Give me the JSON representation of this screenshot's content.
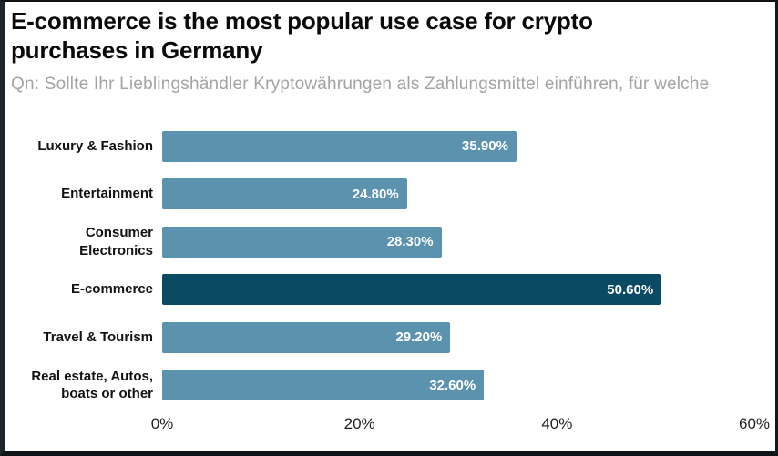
{
  "title": "E-commerce is the most popular use case for crypto purchases in Germany",
  "title_lines": [
    "E-commerce is the most popular use case for crypto",
    "purchases in Germany"
  ],
  "subtitle": "Qn: Sollte Ihr Lieblingshändler Kryptowährungen als Zahlungsmittel einführen, für welche",
  "colors": {
    "bar": "#5b92ae",
    "highlight_bar": "#0a4a63",
    "title_text": "#0a0a0a",
    "subtitle_text": "#a3a3a3",
    "value_text": "#ffffff",
    "frame_border": "#1d272b"
  },
  "chart_data": {
    "type": "bar",
    "orientation": "horizontal",
    "title": "E-commerce is the most popular use case for crypto purchases in Germany",
    "subtitle": "Qn: Sollte Ihr Lieblingshändler Kryptowährungen als Zahlungsmittel einführen, für welche",
    "categories": [
      "Luxury & Fashion",
      "Entertainment",
      "Consumer Electronics",
      "E-commerce",
      "Travel & Tourism",
      "Real estate, Autos, boats or other"
    ],
    "label_lines": [
      [
        "Luxury & Fashion"
      ],
      [
        "Entertainment"
      ],
      [
        "Consumer",
        "Electronics"
      ],
      [
        "E-commerce"
      ],
      [
        "Travel & Tourism"
      ],
      [
        "Real estate, Autos,",
        "boats or other"
      ]
    ],
    "values": [
      35.9,
      24.8,
      28.3,
      50.6,
      29.2,
      32.6
    ],
    "value_labels": [
      "35.90%",
      "24.80%",
      "28.30%",
      "50.60%",
      "29.20%",
      "32.60%"
    ],
    "highlight_index": 3,
    "highlight_category": "E-commerce",
    "xlabel": "",
    "ylabel": "",
    "xlim": [
      0,
      60
    ],
    "x_ticks": [
      "0%",
      "20%",
      "40%",
      "60%"
    ],
    "x_tick_values": [
      0,
      20,
      40,
      60
    ],
    "grid": false,
    "legend": false,
    "bar_color": "#5b92ae",
    "highlight_color": "#0a4a63"
  }
}
